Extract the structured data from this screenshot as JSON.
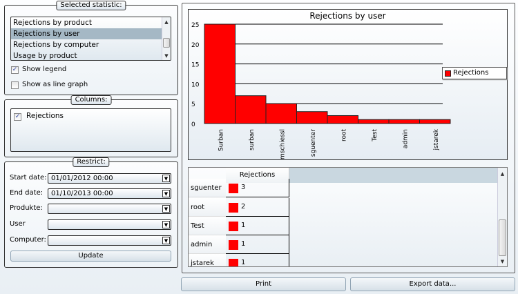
{
  "statistic_panel": {
    "title": "Selected statistic:",
    "items": [
      {
        "label": "Rejections by product",
        "selected": false
      },
      {
        "label": "Rejections by user",
        "selected": true
      },
      {
        "label": "Rejections by computer",
        "selected": false
      },
      {
        "label": "Usage by product",
        "selected": false
      }
    ],
    "show_legend": {
      "label": "Show legend",
      "checked": true
    },
    "show_line": {
      "label": "Show as line graph",
      "checked": false
    }
  },
  "columns_panel": {
    "title": "Columns:",
    "items": [
      {
        "label": "Rejections",
        "checked": true
      }
    ]
  },
  "restrict_panel": {
    "title": "Restrict:",
    "fields": [
      {
        "label": "Start date:",
        "value": "01/01/2012 00:00"
      },
      {
        "label": "End date:",
        "value": "01/10/2013 00:00"
      },
      {
        "label": "Produkte:",
        "value": ""
      },
      {
        "label": "User",
        "value": ""
      },
      {
        "label": "Computer:",
        "value": ""
      }
    ],
    "update_label": "Update"
  },
  "chart_data": {
    "type": "bar",
    "title": "Rejections by user",
    "categories": [
      "Surban",
      "surban",
      "mschiessl",
      "sguenter",
      "root",
      "Test",
      "admin",
      "jstarek"
    ],
    "series": [
      {
        "name": "Rejections",
        "values": [
          25,
          7,
          5,
          3,
          2,
          1,
          1,
          1
        ],
        "color": "#ff0000"
      }
    ],
    "ylim": [
      0,
      25
    ],
    "yticks": [
      "0",
      "5",
      "10",
      "15",
      "20",
      "25"
    ],
    "grid": true,
    "legend": "right"
  },
  "table": {
    "header": "Rejections",
    "rows": [
      {
        "name": "sguenter",
        "value": "3"
      },
      {
        "name": "root",
        "value": "2"
      },
      {
        "name": "Test",
        "value": "1"
      },
      {
        "name": "admin",
        "value": "1"
      },
      {
        "name": "jstarek",
        "value": "1"
      }
    ]
  },
  "buttons": {
    "print": "Print",
    "export": "Export data..."
  }
}
